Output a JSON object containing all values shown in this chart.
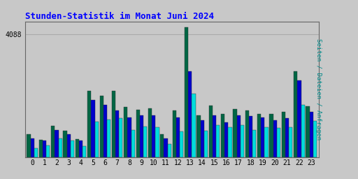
{
  "title": "Stunden-Statistik im Monat Juni 2024",
  "ylabel_right": "Seiten / Dateien / Anfragen",
  "ytick_label": "4088",
  "background_color": "#c8c8c8",
  "plot_bg_color": "#c8c8c8",
  "title_color": "#0000ff",
  "ylabel_right_color": "#008888",
  "grid_color": "#aaaaaa",
  "hours": [
    0,
    1,
    2,
    3,
    4,
    5,
    6,
    7,
    8,
    9,
    10,
    11,
    12,
    13,
    14,
    15,
    16,
    17,
    18,
    19,
    20,
    21,
    22,
    23
  ],
  "seiten": [
    780,
    580,
    1050,
    880,
    600,
    2200,
    2050,
    2200,
    1680,
    1580,
    1620,
    760,
    1560,
    4300,
    1400,
    1720,
    1450,
    1600,
    1550,
    1440,
    1430,
    1520,
    2850,
    1700
  ],
  "dateien": [
    620,
    560,
    920,
    770,
    560,
    1900,
    1730,
    1560,
    1320,
    1400,
    1390,
    640,
    1320,
    2850,
    1240,
    1400,
    1160,
    1400,
    1370,
    1320,
    1230,
    1300,
    2550,
    1500
  ],
  "anfragen": [
    310,
    400,
    640,
    560,
    380,
    1180,
    1260,
    1300,
    920,
    1020,
    1000,
    440,
    860,
    2100,
    880,
    1060,
    1010,
    1060,
    910,
    1010,
    980,
    1010,
    1750,
    1200
  ],
  "color_seiten": "#006644",
  "color_dateien": "#0000cc",
  "color_anfragen": "#00dddd",
  "bar_width": 0.3,
  "ylim_max": 4500,
  "xlim_min": -0.6,
  "xlim_max": 23.6
}
